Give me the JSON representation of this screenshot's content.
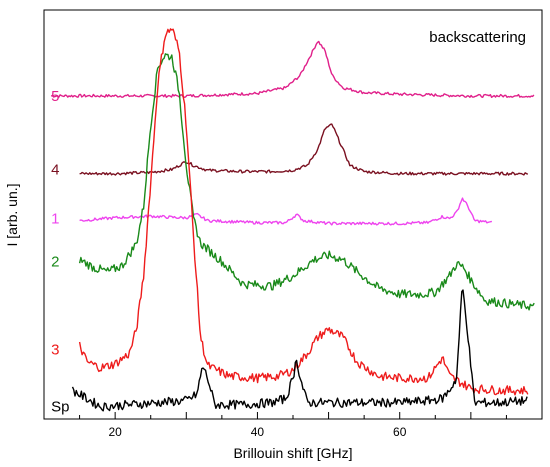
{
  "chart_data": {
    "type": "line",
    "xlabel": "Brillouin shift [GHz]",
    "ylabel": "I [arb. un.]",
    "annotation": "backscattering",
    "xlim": [
      10,
      80
    ],
    "ylim": [
      0,
      100
    ],
    "x_ticks": [
      20,
      40,
      60
    ],
    "y_ticks_labeled": false,
    "grid": false,
    "series": [
      {
        "name": "5",
        "color": "#e0208a",
        "label_pos": [
          11,
          79
        ],
        "points": [
          [
            11,
            79
          ],
          [
            20,
            79
          ],
          [
            30,
            79
          ],
          [
            40,
            79.6
          ],
          [
            44,
            81
          ],
          [
            46,
            84
          ],
          [
            47.5,
            89
          ],
          [
            48.5,
            92.5
          ],
          [
            49.5,
            90
          ],
          [
            50.5,
            84
          ],
          [
            52,
            81
          ],
          [
            55,
            79.8
          ],
          [
            60,
            79.4
          ],
          [
            70,
            79
          ],
          [
            79,
            79
          ]
        ]
      },
      {
        "name": "4",
        "color": "#7a1020",
        "label_pos": [
          11,
          61
        ],
        "points": [
          [
            15,
            60
          ],
          [
            20,
            60
          ],
          [
            25,
            60.3
          ],
          [
            28,
            61
          ],
          [
            30,
            63
          ],
          [
            31,
            62
          ],
          [
            33,
            60.8
          ],
          [
            38,
            60.5
          ],
          [
            42,
            60.5
          ],
          [
            45,
            60.8
          ],
          [
            47,
            62
          ],
          [
            48.5,
            66
          ],
          [
            49.5,
            71
          ],
          [
            50.5,
            72
          ],
          [
            51.5,
            68
          ],
          [
            53,
            62
          ],
          [
            55,
            60.5
          ],
          [
            60,
            60
          ],
          [
            70,
            60
          ],
          [
            78,
            60
          ]
        ]
      },
      {
        "name": "1",
        "color": "#ee44ee",
        "label_pos": [
          11,
          49
        ],
        "points": [
          [
            15,
            48.5
          ],
          [
            20,
            49.2
          ],
          [
            25,
            49.6
          ],
          [
            28,
            49.3
          ],
          [
            30,
            49.2
          ],
          [
            31.5,
            50
          ],
          [
            33,
            48.5
          ],
          [
            40,
            48
          ],
          [
            44,
            48
          ],
          [
            45.5,
            50
          ],
          [
            46.5,
            48.5
          ],
          [
            50,
            47.8
          ],
          [
            60,
            47.8
          ],
          [
            64,
            48
          ],
          [
            66,
            49.5
          ],
          [
            67,
            49
          ],
          [
            68,
            50.5
          ],
          [
            68.8,
            54
          ],
          [
            69.6,
            52
          ],
          [
            70.5,
            48.5
          ],
          [
            73,
            48
          ]
        ]
      },
      {
        "name": "2",
        "color": "#1a8a1a",
        "label_pos": [
          11,
          38.5
        ],
        "points": [
          [
            15,
            39
          ],
          [
            17,
            37
          ],
          [
            19,
            36
          ],
          [
            21,
            37.5
          ],
          [
            23,
            43
          ],
          [
            24,
            52
          ],
          [
            25,
            72
          ],
          [
            26,
            86
          ],
          [
            27,
            89
          ],
          [
            28,
            88.5
          ],
          [
            29,
            80
          ],
          [
            30,
            62
          ],
          [
            31,
            49
          ],
          [
            32,
            43
          ],
          [
            35,
            38.5
          ],
          [
            38,
            33
          ],
          [
            42,
            32.5
          ],
          [
            45,
            35
          ],
          [
            48,
            39
          ],
          [
            50,
            40
          ],
          [
            52,
            39
          ],
          [
            54,
            36
          ],
          [
            57,
            32
          ],
          [
            60,
            30.5
          ],
          [
            63,
            30.5
          ],
          [
            65,
            31
          ],
          [
            67,
            35
          ],
          [
            68,
            38
          ],
          [
            69,
            37
          ],
          [
            70,
            34
          ],
          [
            72,
            29
          ],
          [
            76,
            28
          ],
          [
            79,
            27.5
          ]
        ]
      },
      {
        "name": "3",
        "color": "#ee1c1c",
        "label_pos": [
          11,
          17
        ],
        "points": [
          [
            15,
            18
          ],
          [
            16,
            14
          ],
          [
            18,
            12.5
          ],
          [
            20,
            13.5
          ],
          [
            22,
            16
          ],
          [
            23,
            22
          ],
          [
            24,
            35
          ],
          [
            25,
            58
          ],
          [
            26,
            82
          ],
          [
            27,
            94
          ],
          [
            28,
            95.5
          ],
          [
            29,
            90
          ],
          [
            30,
            72
          ],
          [
            31,
            45
          ],
          [
            32,
            20
          ],
          [
            33,
            13
          ],
          [
            36,
            10.5
          ],
          [
            40,
            10
          ],
          [
            43,
            10.5
          ],
          [
            45,
            12
          ],
          [
            47,
            16
          ],
          [
            48.5,
            20
          ],
          [
            50,
            22
          ],
          [
            52,
            20
          ],
          [
            54,
            14
          ],
          [
            57,
            10.5
          ],
          [
            60,
            10
          ],
          [
            64,
            10
          ],
          [
            65,
            12.5
          ],
          [
            66,
            15
          ],
          [
            67,
            10.5
          ],
          [
            70,
            7.5
          ],
          [
            74,
            7
          ],
          [
            78,
            7
          ]
        ]
      },
      {
        "name": "Sp",
        "color": "#000000",
        "label_pos": [
          11,
          3
        ],
        "points": [
          [
            14,
            7
          ],
          [
            18,
            3
          ],
          [
            22,
            3.5
          ],
          [
            26,
            4
          ],
          [
            30,
            4.5
          ],
          [
            31.5,
            6
          ],
          [
            32.3,
            13
          ],
          [
            33,
            10
          ],
          [
            34,
            3.5
          ],
          [
            38,
            3.5
          ],
          [
            42,
            4
          ],
          [
            44,
            5
          ],
          [
            45,
            10
          ],
          [
            45.5,
            15
          ],
          [
            46,
            10
          ],
          [
            47,
            4
          ],
          [
            50,
            4
          ],
          [
            55,
            4
          ],
          [
            60,
            4
          ],
          [
            64,
            4.5
          ],
          [
            66,
            5
          ],
          [
            67,
            7
          ],
          [
            68,
            10
          ],
          [
            68.8,
            33
          ],
          [
            69.5,
            22
          ],
          [
            70.5,
            4
          ],
          [
            74,
            4
          ],
          [
            78,
            4.5
          ]
        ]
      }
    ]
  }
}
